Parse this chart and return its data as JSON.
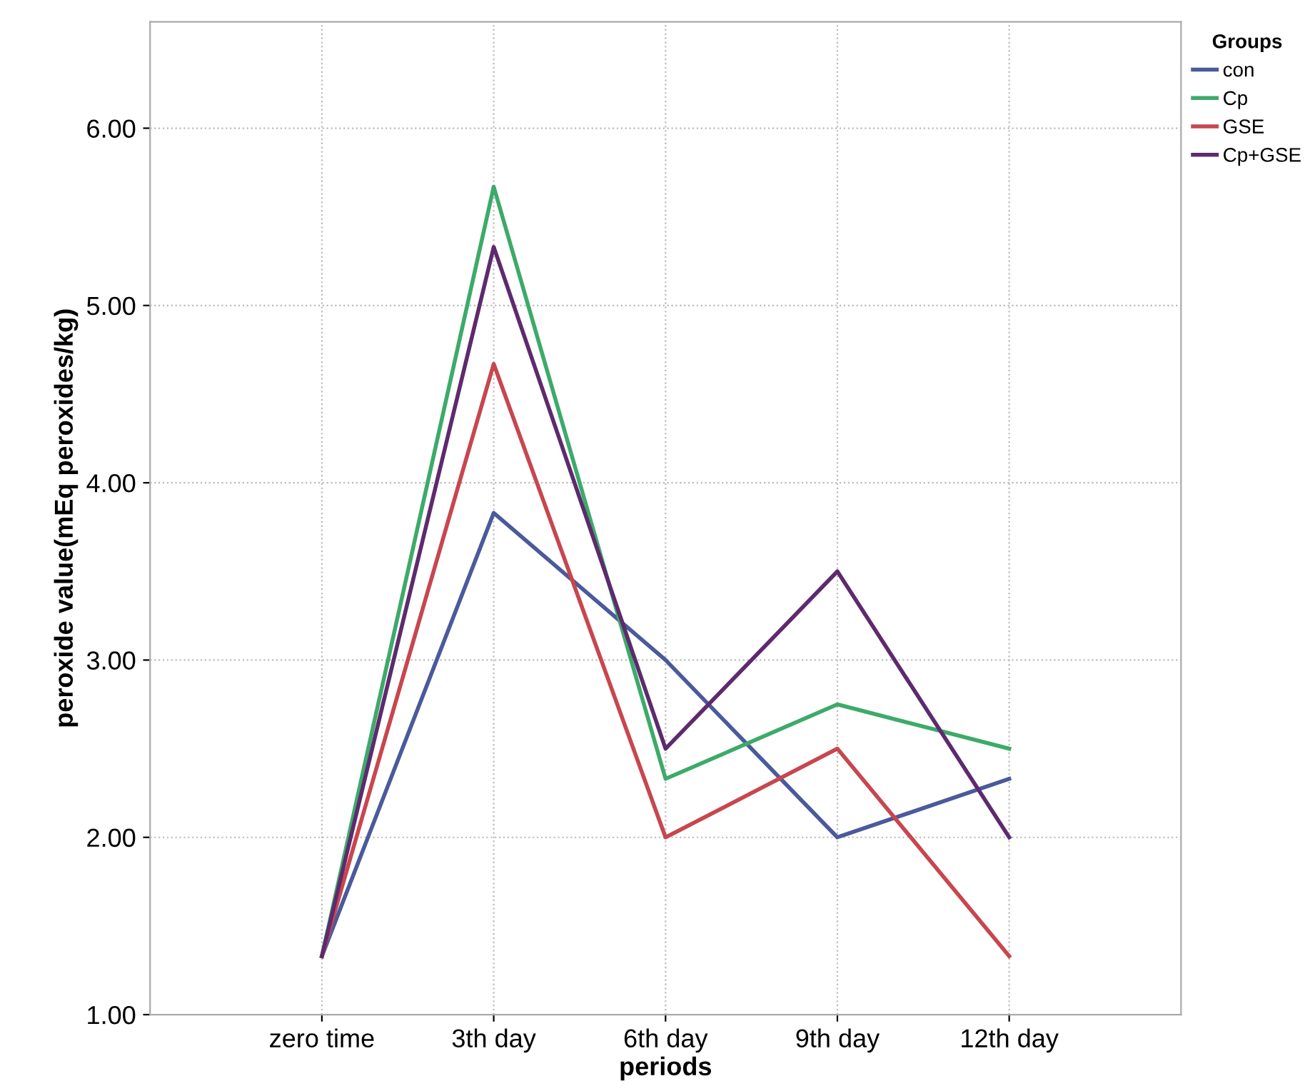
{
  "chart_data": {
    "type": "line",
    "xlabel": "periods",
    "ylabel": "peroxide value(mEq peroxides/kg)",
    "legend_title": "Groups",
    "categories": [
      "zero time",
      "3th day",
      "6th day",
      "9th day",
      "12th day"
    ],
    "series": [
      {
        "name": "con",
        "color": "#4a5a9a",
        "values": [
          1.33,
          3.83,
          3.0,
          2.0,
          2.33
        ]
      },
      {
        "name": "Cp",
        "color": "#3daa6a",
        "values": [
          1.33,
          5.67,
          2.33,
          2.75,
          2.5
        ]
      },
      {
        "name": "GSE",
        "color": "#c8464e",
        "values": [
          1.33,
          4.67,
          2.0,
          2.5,
          1.33
        ]
      },
      {
        "name": "Cp+GSE",
        "color": "#5e2a6e",
        "values": [
          1.33,
          5.33,
          2.5,
          3.5,
          2.0
        ]
      }
    ],
    "ylim": [
      1.0,
      6.6
    ],
    "yticks": [
      {
        "value": 1,
        "label": "1.00"
      },
      {
        "value": 2,
        "label": "2.00"
      },
      {
        "value": 3,
        "label": "3.00"
      },
      {
        "value": 4,
        "label": "4.00"
      },
      {
        "value": 5,
        "label": "5.00"
      },
      {
        "value": 6,
        "label": "6.00"
      }
    ],
    "grid": true,
    "legend": "top right",
    "marker": "none",
    "line_style": "solid"
  }
}
